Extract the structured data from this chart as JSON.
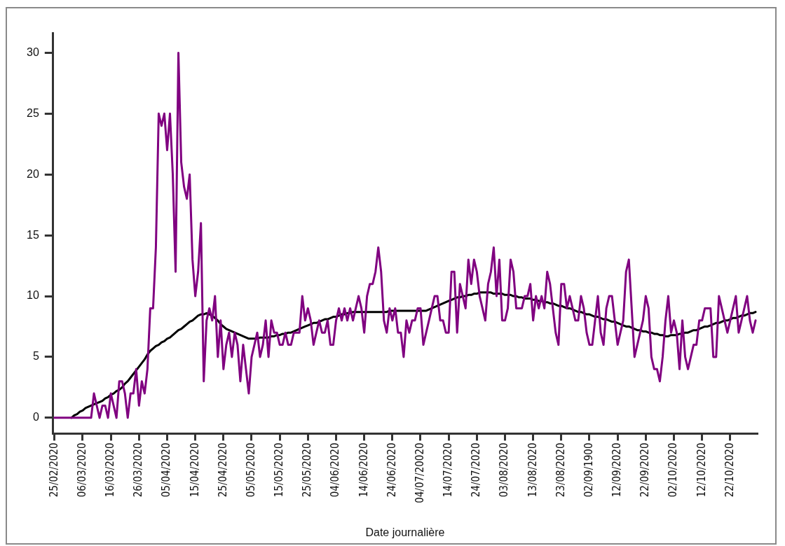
{
  "chart_data": {
    "type": "line",
    "xlabel": "Date journalière",
    "categories": [
      "25/02/2020",
      null,
      null,
      null,
      null,
      null,
      null,
      null,
      null,
      null,
      "06/03/2020",
      null,
      null,
      null,
      null,
      null,
      null,
      null,
      null,
      null,
      "16/03/2020",
      null,
      null,
      null,
      null,
      null,
      null,
      null,
      null,
      null,
      "26/03/2020",
      null,
      null,
      null,
      null,
      null,
      null,
      null,
      null,
      null,
      "05/04/2020",
      null,
      null,
      null,
      null,
      null,
      null,
      null,
      null,
      null,
      "15/04/2020",
      null,
      null,
      null,
      null,
      null,
      null,
      null,
      null,
      null,
      "25/04/2020",
      null,
      null,
      null,
      null,
      null,
      null,
      null,
      null,
      null,
      "05/05/2020",
      null,
      null,
      null,
      null,
      null,
      null,
      null,
      null,
      null,
      "15/05/2020",
      null,
      null,
      null,
      null,
      null,
      null,
      null,
      null,
      null,
      "25/05/2020",
      null,
      null,
      null,
      null,
      null,
      null,
      null,
      null,
      null,
      "04/06/2020",
      null,
      null,
      null,
      null,
      null,
      null,
      null,
      null,
      null,
      "14/06/2020",
      null,
      null,
      null,
      null,
      null,
      null,
      null,
      null,
      null,
      "24/06/2020",
      null,
      null,
      null,
      null,
      null,
      null,
      null,
      null,
      null,
      "04/07/20020",
      null,
      null,
      null,
      null,
      null,
      null,
      null,
      null,
      null,
      "14/07/2020",
      null,
      null,
      null,
      null,
      null,
      null,
      null,
      null,
      null,
      "24/07/2020",
      null,
      null,
      null,
      null,
      null,
      null,
      null,
      null,
      null,
      "03/08/2020",
      null,
      null,
      null,
      null,
      null,
      null,
      null,
      null,
      null,
      "13/08/2020",
      null,
      null,
      null,
      null,
      null,
      null,
      null,
      null,
      null,
      "23/08/2020",
      null,
      null,
      null,
      null,
      null,
      null,
      null,
      null,
      null,
      "02/09/1900",
      null,
      null,
      null,
      null,
      null,
      null,
      null,
      null,
      null,
      "12/09/2020",
      null,
      null,
      null,
      null,
      null,
      null,
      null,
      null,
      null,
      "22/09/2020",
      null,
      null,
      null,
      null,
      null,
      null,
      null,
      null,
      null,
      "02/10/2020",
      null,
      null,
      null,
      null,
      null,
      null,
      null,
      null,
      null,
      "12/10/2020",
      null,
      null,
      null,
      null,
      null,
      null,
      null,
      null,
      null,
      "22/10/2020",
      null,
      null,
      null,
      null,
      null,
      null,
      null,
      null,
      null
    ],
    "ylim": [
      -1.3,
      31.6
    ],
    "yticks": [
      0,
      5,
      10,
      15,
      20,
      25,
      30
    ],
    "grid": false,
    "legend": false,
    "marker": "none",
    "line_style": "solid",
    "series": [
      {
        "color": "#800080",
        "values": [
          0,
          0,
          0,
          0,
          0,
          0,
          0,
          0,
          0,
          0,
          0,
          0,
          0,
          0,
          2,
          1,
          0,
          1,
          1,
          0,
          2,
          1,
          0,
          3,
          3,
          2,
          0,
          2,
          2,
          4,
          1,
          3,
          2,
          4,
          9,
          9,
          14,
          25,
          24,
          25,
          22,
          25,
          20,
          12,
          30,
          21,
          19,
          18,
          20,
          13,
          10,
          12,
          16,
          3,
          8,
          9,
          8,
          10,
          5,
          8,
          4,
          6,
          7,
          5,
          7,
          6,
          3,
          6,
          4,
          2,
          5,
          6,
          7,
          5,
          6,
          8,
          5,
          8,
          7,
          7,
          6,
          6,
          7,
          6,
          6,
          7,
          7,
          7,
          10,
          8,
          9,
          8,
          6,
          7,
          8,
          7,
          7,
          8,
          6,
          6,
          8,
          9,
          8,
          9,
          8,
          9,
          8,
          9,
          10,
          9,
          7,
          10,
          11,
          11,
          12,
          14,
          12,
          8,
          7,
          9,
          8,
          9,
          7,
          7,
          5,
          8,
          7,
          8,
          8,
          9,
          9,
          6,
          7,
          8,
          9,
          10,
          10,
          8,
          8,
          7,
          7,
          12,
          12,
          7,
          11,
          10,
          9,
          13,
          11,
          13,
          12,
          10,
          9,
          8,
          11,
          12,
          14,
          10,
          13,
          8,
          8,
          9,
          13,
          12,
          9,
          9,
          9,
          10,
          10,
          11,
          8,
          10,
          9,
          10,
          9,
          12,
          11,
          9,
          7,
          6,
          11,
          11,
          9,
          10,
          9,
          8,
          8,
          10,
          9,
          7,
          6,
          6,
          8,
          10,
          7,
          6,
          9,
          10,
          10,
          8,
          6,
          7,
          8,
          12,
          13,
          9,
          5,
          6,
          7,
          8,
          10,
          9,
          5,
          4,
          4,
          3,
          5,
          8,
          10,
          7,
          8,
          7,
          4,
          8,
          5,
          4,
          5,
          6,
          6,
          8,
          8,
          9,
          9,
          9,
          5,
          5,
          10,
          9,
          8,
          7,
          8,
          9,
          10,
          7,
          8,
          9,
          10,
          8,
          7,
          8
        ]
      },
      {
        "color": "#000000",
        "values": [
          null,
          null,
          null,
          null,
          null,
          null,
          0,
          0.2,
          0.3,
          0.5,
          0.6,
          0.8,
          0.9,
          1.0,
          1.1,
          1.2,
          1.3,
          1.4,
          1.6,
          1.7,
          1.9,
          2.0,
          2.2,
          2.3,
          2.5,
          2.8,
          3.0,
          3.3,
          3.6,
          3.9,
          4.2,
          4.5,
          4.8,
          5.2,
          5.5,
          5.7,
          5.9,
          6.0,
          6.2,
          6.3,
          6.5,
          6.6,
          6.8,
          7.0,
          7.2,
          7.3,
          7.5,
          7.7,
          7.9,
          8.0,
          8.2,
          8.4,
          8.5,
          8.5,
          8.6,
          8.5,
          8.4,
          8.2,
          8.0,
          7.7,
          7.5,
          7.3,
          7.2,
          7.1,
          7.0,
          6.9,
          6.8,
          6.7,
          6.6,
          6.5,
          6.5,
          6.5,
          6.5,
          6.6,
          6.6,
          6.6,
          6.6,
          6.7,
          6.7,
          6.8,
          6.8,
          6.9,
          6.9,
          7.0,
          7.0,
          7.1,
          7.2,
          7.3,
          7.4,
          7.5,
          7.6,
          7.7,
          7.8,
          7.8,
          7.9,
          8.0,
          8.1,
          8.1,
          8.2,
          8.3,
          8.3,
          8.4,
          8.5,
          8.5,
          8.6,
          8.6,
          8.7,
          8.7,
          8.7,
          8.7,
          8.7,
          8.7,
          8.7,
          8.7,
          8.7,
          8.7,
          8.7,
          8.7,
          8.7,
          8.8,
          8.8,
          8.8,
          8.8,
          8.8,
          8.8,
          8.8,
          8.8,
          8.8,
          8.8,
          8.8,
          8.8,
          8.8,
          8.8,
          8.9,
          9.0,
          9.1,
          9.2,
          9.3,
          9.4,
          9.5,
          9.6,
          9.7,
          9.8,
          9.9,
          9.9,
          10.0,
          10.0,
          10.1,
          10.1,
          10.2,
          10.2,
          10.3,
          10.3,
          10.3,
          10.3,
          10.3,
          10.2,
          10.2,
          10.2,
          10.2,
          10.1,
          10.1,
          10.1,
          10.0,
          10.0,
          9.9,
          9.9,
          9.8,
          9.8,
          9.8,
          9.7,
          9.7,
          9.6,
          9.6,
          9.5,
          9.5,
          9.4,
          9.4,
          9.3,
          9.2,
          9.2,
          9.1,
          9.0,
          9.0,
          8.9,
          8.8,
          8.7,
          8.7,
          8.6,
          8.5,
          8.5,
          8.4,
          8.3,
          8.3,
          8.2,
          8.1,
          8.1,
          8.0,
          7.9,
          7.9,
          7.8,
          7.7,
          7.6,
          7.5,
          7.5,
          7.4,
          7.3,
          7.2,
          7.2,
          7.1,
          7.1,
          7.0,
          7.0,
          6.9,
          6.9,
          6.8,
          6.8,
          6.7,
          6.7,
          6.8,
          6.8,
          6.8,
          6.9,
          6.9,
          7.0,
          7.0,
          7.1,
          7.2,
          7.2,
          7.3,
          7.4,
          7.5,
          7.5,
          7.6,
          7.7,
          7.8,
          7.8,
          7.9,
          8.0,
          8.0,
          8.1,
          8.2,
          8.2,
          8.3,
          8.4,
          8.4,
          8.5,
          8.6,
          8.6,
          8.7
        ]
      }
    ]
  }
}
